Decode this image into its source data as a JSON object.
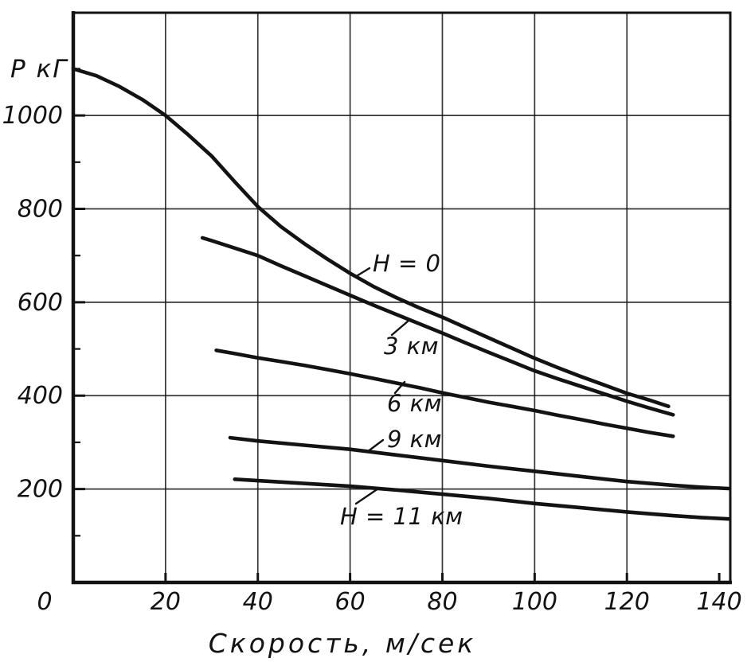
{
  "figure": {
    "paper_color": "#ffffff",
    "ink_color": "#131313"
  },
  "chart_data": {
    "type": "line",
    "title": "",
    "xlabel": "Скорость,  м/сек",
    "ylabel": "Р кГ",
    "x_unit": "м/сек",
    "y_unit": "кГ",
    "xlim": [
      0,
      142.4
    ],
    "ylim": [
      0,
      1220
    ],
    "x_ticks": [
      0,
      20,
      40,
      60,
      80,
      100,
      120,
      140
    ],
    "y_ticks": [
      0,
      200,
      400,
      600,
      800,
      1000
    ],
    "x_gridlines": [
      20,
      40,
      60,
      80,
      100,
      120
    ],
    "y_gridlines": [
      200,
      400,
      600,
      800,
      1000
    ],
    "y_minor_ticks": [
      100,
      300,
      500,
      700,
      900,
      1100
    ],
    "grid": true,
    "legend_position": "inline-labels",
    "series": [
      {
        "name": "H = 0",
        "altitude_km": 0,
        "points": [
          [
            0,
            1100
          ],
          [
            5,
            1085
          ],
          [
            10,
            1062
          ],
          [
            15,
            1034
          ],
          [
            20,
            1000
          ],
          [
            25,
            958
          ],
          [
            30,
            913
          ],
          [
            35,
            858
          ],
          [
            40,
            805
          ],
          [
            45,
            762
          ],
          [
            50,
            726
          ],
          [
            55,
            693
          ],
          [
            60,
            662
          ],
          [
            65,
            634
          ],
          [
            70,
            610
          ],
          [
            75,
            588
          ],
          [
            80,
            568
          ],
          [
            85,
            546
          ],
          [
            90,
            524
          ],
          [
            95,
            502
          ],
          [
            100,
            480
          ],
          [
            105,
            460
          ],
          [
            110,
            441
          ],
          [
            115,
            423
          ],
          [
            120,
            405
          ],
          [
            125,
            390
          ],
          [
            129,
            377
          ]
        ]
      },
      {
        "name": "3 км",
        "altitude_km": 3,
        "points": [
          [
            28,
            738
          ],
          [
            30,
            732
          ],
          [
            35,
            716
          ],
          [
            40,
            700
          ],
          [
            45,
            678
          ],
          [
            50,
            657
          ],
          [
            55,
            636
          ],
          [
            60,
            615
          ],
          [
            65,
            594
          ],
          [
            70,
            574
          ],
          [
            75,
            554
          ],
          [
            80,
            534
          ],
          [
            85,
            513
          ],
          [
            90,
            493
          ],
          [
            95,
            473
          ],
          [
            100,
            453
          ],
          [
            105,
            436
          ],
          [
            110,
            420
          ],
          [
            115,
            404
          ],
          [
            120,
            388
          ],
          [
            125,
            373
          ],
          [
            130,
            359
          ]
        ]
      },
      {
        "name": "6 км",
        "altitude_km": 6,
        "points": [
          [
            31,
            497
          ],
          [
            35,
            490
          ],
          [
            40,
            481
          ],
          [
            45,
            473
          ],
          [
            50,
            465
          ],
          [
            55,
            456
          ],
          [
            60,
            447
          ],
          [
            65,
            437
          ],
          [
            70,
            427
          ],
          [
            75,
            417
          ],
          [
            80,
            406
          ],
          [
            85,
            396
          ],
          [
            90,
            386
          ],
          [
            95,
            377
          ],
          [
            100,
            368
          ],
          [
            105,
            358
          ],
          [
            110,
            349
          ],
          [
            115,
            339
          ],
          [
            120,
            330
          ],
          [
            125,
            321
          ],
          [
            130,
            313
          ]
        ]
      },
      {
        "name": "9 км",
        "altitude_km": 9,
        "points": [
          [
            34,
            310
          ],
          [
            40,
            303
          ],
          [
            50,
            294
          ],
          [
            60,
            285
          ],
          [
            70,
            273
          ],
          [
            80,
            261
          ],
          [
            90,
            249
          ],
          [
            100,
            238
          ],
          [
            110,
            227
          ],
          [
            120,
            216
          ],
          [
            130,
            208
          ],
          [
            136,
            204
          ],
          [
            142,
            201
          ]
        ]
      },
      {
        "name": "H = 11 км",
        "altitude_km": 11,
        "points": [
          [
            35,
            221
          ],
          [
            40,
            218
          ],
          [
            50,
            212
          ],
          [
            60,
            206
          ],
          [
            70,
            198
          ],
          [
            80,
            189
          ],
          [
            90,
            180
          ],
          [
            100,
            169
          ],
          [
            110,
            160
          ],
          [
            120,
            151
          ],
          [
            130,
            143
          ],
          [
            136,
            139
          ],
          [
            142,
            136
          ]
        ]
      }
    ],
    "annotations": [
      {
        "text": "H = 0",
        "x": 468,
        "y": 341,
        "leader": [
          446,
          348,
          464,
          337
        ]
      },
      {
        "text": "3 км",
        "x": 482,
        "y": 445,
        "leader": [
          513,
          403,
          492,
          421
        ]
      },
      {
        "text": "6 км",
        "x": 486,
        "y": 517,
        "leader": [
          508,
          480,
          496,
          494
        ]
      },
      {
        "text": "9 км",
        "x": 486,
        "y": 562,
        "leader": [
          461,
          568,
          481,
          553
        ]
      },
      {
        "text": "H = 11 км",
        "x": 427,
        "y": 659,
        "leader": [
          447,
          633,
          475,
          614
        ]
      }
    ]
  }
}
